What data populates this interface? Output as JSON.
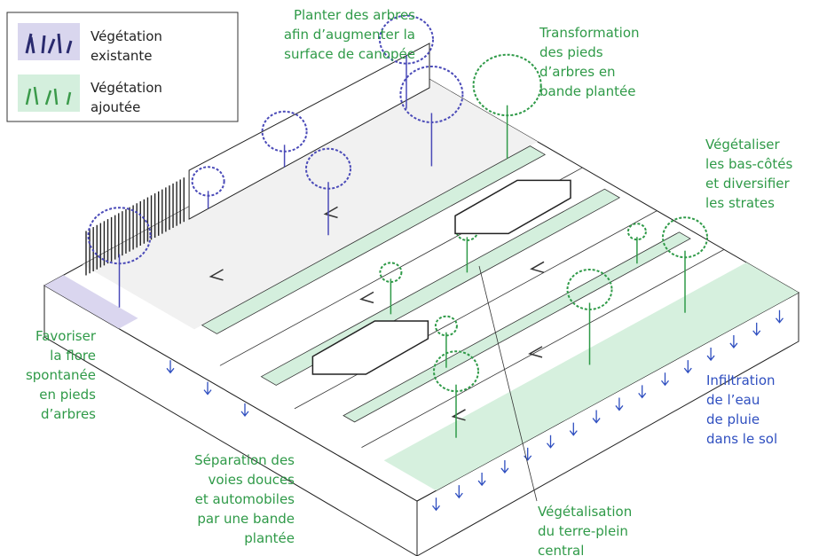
{
  "legend": {
    "items": [
      {
        "lines": [
          "Végétation",
          "existante"
        ]
      },
      {
        "lines": [
          "Végétation",
          "ajoutée"
        ]
      }
    ]
  },
  "annotations": [
    {
      "lines": [
        "Planter des arbres",
        "afin d’augmenter la",
        "surface de canopée"
      ]
    },
    {
      "lines": [
        "Transformation",
        "des pieds",
        "d’arbres en",
        "bande plantée"
      ]
    },
    {
      "lines": [
        "Végétaliser",
        "les bas-côtés",
        "et diversifier",
        "les strates"
      ]
    },
    {
      "lines": [
        "Favoriser",
        "la flore",
        "spontanée",
        "en pieds",
        "d’arbres"
      ]
    },
    {
      "lines": [
        "Séparation des",
        "voies douces",
        "et automobiles",
        "par une bande",
        "plantée"
      ]
    },
    {
      "lines": [
        "Végétalisation",
        "du terre-plein",
        "central"
      ]
    },
    {
      "lines": [
        "Infiltration",
        "de l’eau",
        "de pluie",
        "dans le sol"
      ]
    }
  ]
}
